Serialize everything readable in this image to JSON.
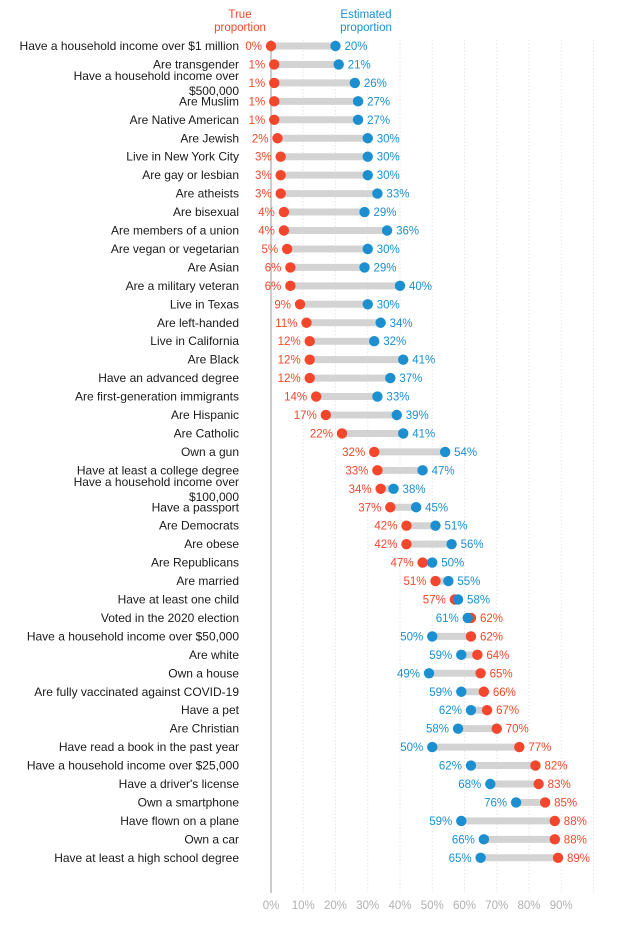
{
  "chart_data": {
    "type": "dumbbell",
    "legend": {
      "true_label_line1": "True",
      "true_label_line2": "proportion",
      "est_label_line1": "Estimated",
      "est_label_line2": "proportion"
    },
    "colors": {
      "true": "#f2472c",
      "estimated": "#1b8fd0",
      "bar": "#d3d3d3",
      "grid": "#e6e6e6",
      "axis": "#9a9a9a"
    },
    "xlim": [
      0,
      100
    ],
    "ticks": [
      "0%",
      "10%",
      "20%",
      "30%",
      "40%",
      "50%",
      "60%",
      "70%",
      "80%",
      "90%"
    ],
    "rows": [
      {
        "label": [
          "Have a household income over $1 million"
        ],
        "true": 0,
        "est": 20
      },
      {
        "label": [
          "Are transgender"
        ],
        "true": 1,
        "est": 21
      },
      {
        "label": [
          "Have a household income over",
          "$500,000"
        ],
        "true": 1,
        "est": 26
      },
      {
        "label": [
          "Are Muslim"
        ],
        "true": 1,
        "est": 27
      },
      {
        "label": [
          "Are Native American"
        ],
        "true": 1,
        "est": 27
      },
      {
        "label": [
          "Are Jewish"
        ],
        "true": 2,
        "est": 30
      },
      {
        "label": [
          "Live in New York City"
        ],
        "true": 3,
        "est": 30
      },
      {
        "label": [
          "Are gay or lesbian"
        ],
        "true": 3,
        "est": 30
      },
      {
        "label": [
          "Are atheists"
        ],
        "true": 3,
        "est": 33
      },
      {
        "label": [
          "Are bisexual"
        ],
        "true": 4,
        "est": 29
      },
      {
        "label": [
          "Are members of a union"
        ],
        "true": 4,
        "est": 36
      },
      {
        "label": [
          "Are vegan or vegetarian"
        ],
        "true": 5,
        "est": 30
      },
      {
        "label": [
          "Are Asian"
        ],
        "true": 6,
        "est": 29
      },
      {
        "label": [
          "Are a military veteran"
        ],
        "true": 6,
        "est": 40
      },
      {
        "label": [
          "Live in Texas"
        ],
        "true": 9,
        "est": 30
      },
      {
        "label": [
          "Are left-handed"
        ],
        "true": 11,
        "est": 34
      },
      {
        "label": [
          "Live in California"
        ],
        "true": 12,
        "est": 32
      },
      {
        "label": [
          "Are Black"
        ],
        "true": 12,
        "est": 41
      },
      {
        "label": [
          "Have an advanced degree"
        ],
        "true": 12,
        "est": 37
      },
      {
        "label": [
          "Are first-generation immigrants"
        ],
        "true": 14,
        "est": 33
      },
      {
        "label": [
          "Are Hispanic"
        ],
        "true": 17,
        "est": 39
      },
      {
        "label": [
          "Are Catholic"
        ],
        "true": 22,
        "est": 41
      },
      {
        "label": [
          "Own a gun"
        ],
        "true": 32,
        "est": 54
      },
      {
        "label": [
          "Have at least a college degree"
        ],
        "true": 33,
        "est": 47
      },
      {
        "label": [
          "Have a household income over",
          "$100,000"
        ],
        "true": 34,
        "est": 38
      },
      {
        "label": [
          "Have a passport"
        ],
        "true": 37,
        "est": 45
      },
      {
        "label": [
          "Are Democrats"
        ],
        "true": 42,
        "est": 51
      },
      {
        "label": [
          "Are obese"
        ],
        "true": 42,
        "est": 56
      },
      {
        "label": [
          "Are Republicans"
        ],
        "true": 47,
        "est": 50
      },
      {
        "label": [
          "Are married"
        ],
        "true": 51,
        "est": 55
      },
      {
        "label": [
          "Have at least one child"
        ],
        "true": 57,
        "est": 58
      },
      {
        "label": [
          "Voted in the 2020 election"
        ],
        "true": 62,
        "est": 61
      },
      {
        "label": [
          "Have a household income over $50,000"
        ],
        "true": 62,
        "est": 50
      },
      {
        "label": [
          "Are white"
        ],
        "true": 64,
        "est": 59
      },
      {
        "label": [
          "Own a house"
        ],
        "true": 65,
        "est": 49
      },
      {
        "label": [
          "Are fully vaccinated against COVID-19"
        ],
        "true": 66,
        "est": 59
      },
      {
        "label": [
          "Have a pet"
        ],
        "true": 67,
        "est": 62
      },
      {
        "label": [
          "Are Christian"
        ],
        "true": 70,
        "est": 58
      },
      {
        "label": [
          "Have read a book in the past year"
        ],
        "true": 77,
        "est": 50
      },
      {
        "label": [
          "Have a household income over $25,000"
        ],
        "true": 82,
        "est": 62
      },
      {
        "label": [
          "Have a driver's license"
        ],
        "true": 83,
        "est": 68
      },
      {
        "label": [
          "Own a smartphone"
        ],
        "true": 85,
        "est": 76
      },
      {
        "label": [
          "Have flown on a plane"
        ],
        "true": 88,
        "est": 59
      },
      {
        "label": [
          "Own a car"
        ],
        "true": 88,
        "est": 66
      },
      {
        "label": [
          "Have at least a high school degree"
        ],
        "true": 89,
        "est": 65
      }
    ]
  }
}
